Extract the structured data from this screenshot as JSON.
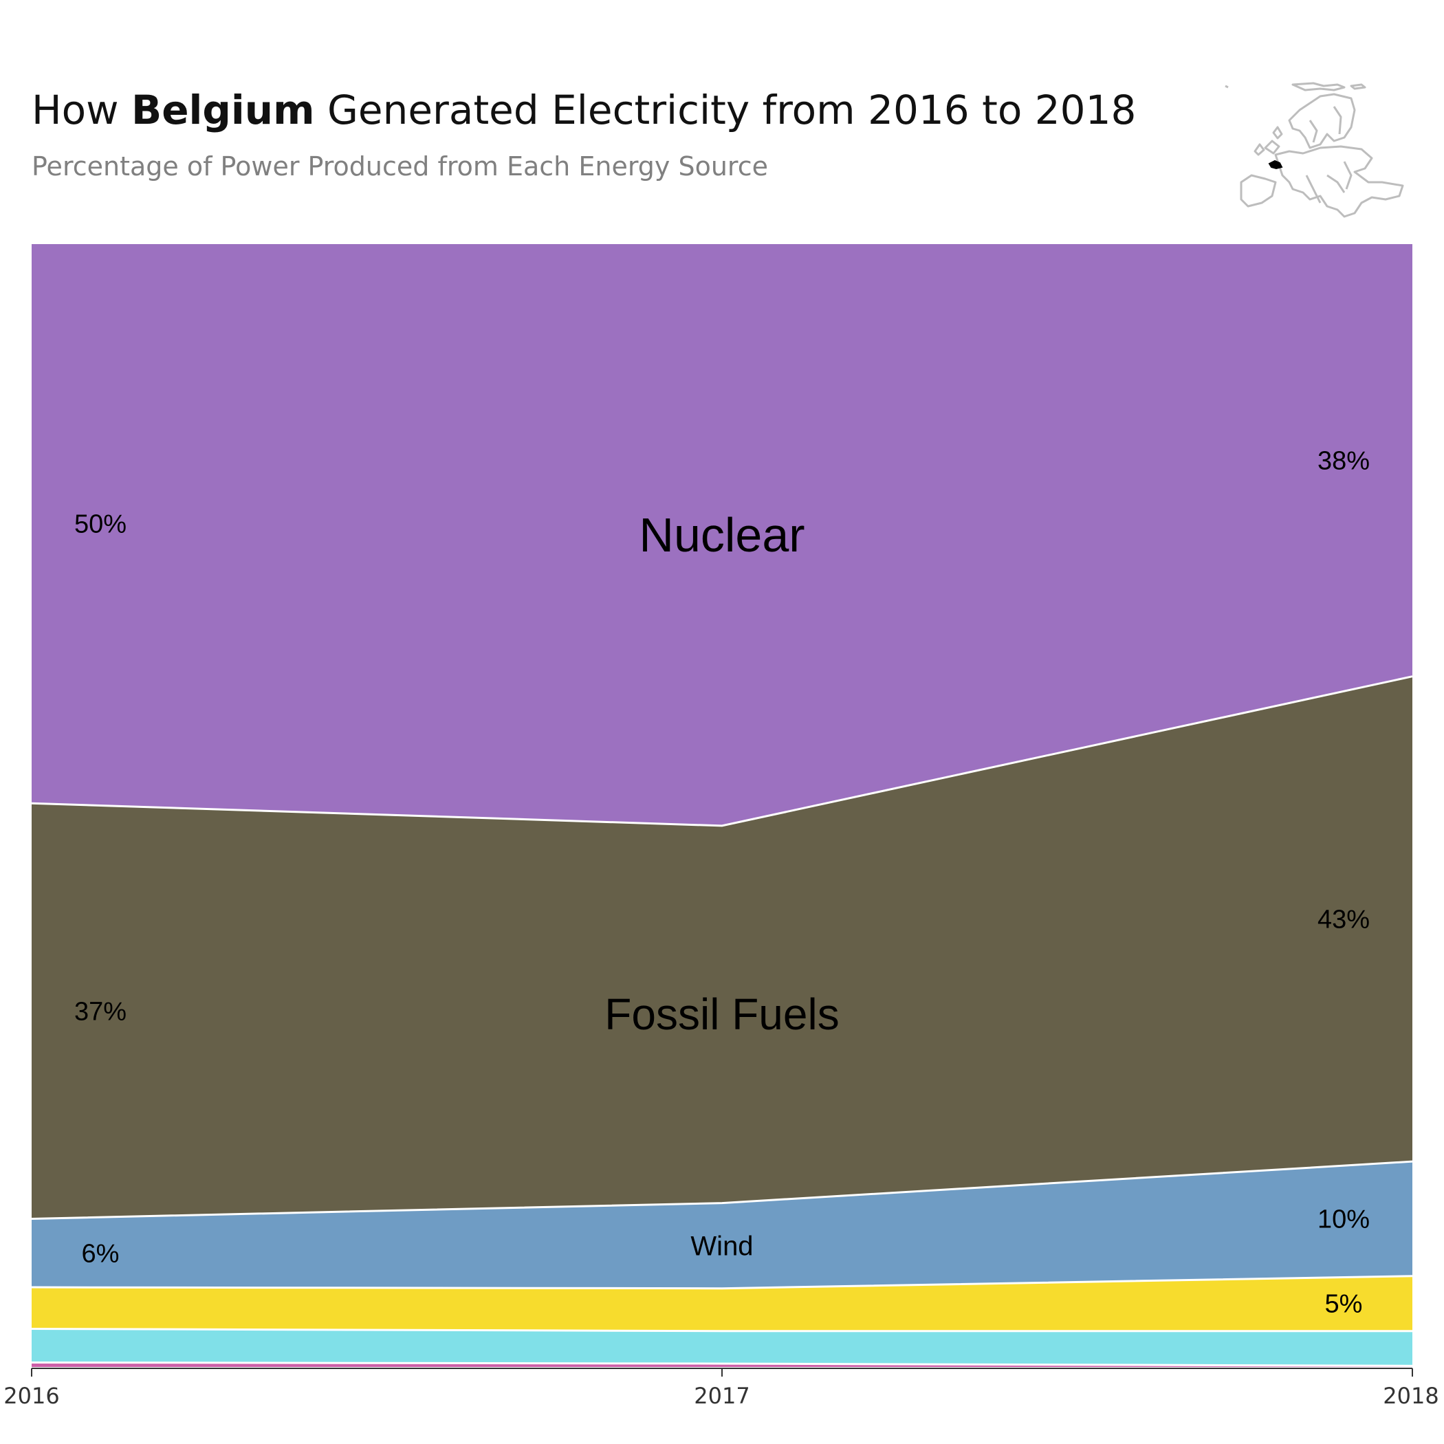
{
  "header": {
    "title_prefix": "How ",
    "title_country": "Belgium",
    "title_suffix": " Generated Electricity from 2016 to 2018",
    "subtitle": "Percentage of Power Produced from Each Energy Source"
  },
  "locator_map": {
    "icon": "europe-map-icon",
    "highlight": "Belgium",
    "highlight_color": "#000000",
    "outline_color": "#bdbdbd"
  },
  "chart_data": {
    "type": "area",
    "stacked": true,
    "normalized": true,
    "x": [
      "2016",
      "2017",
      "2018"
    ],
    "x_ticks": [
      "2016",
      "2017",
      "2018"
    ],
    "ylim": [
      0,
      100
    ],
    "grid": false,
    "legend": "none",
    "series": [
      {
        "name": "",
        "color": "#cc5fa8",
        "values": [
          0.4,
          0.3,
          0.1
        ]
      },
      {
        "name": "",
        "color": "#80e0e8",
        "values": [
          3.0,
          2.9,
          3.1
        ]
      },
      {
        "name": "",
        "color": "#f7dc2d",
        "values": [
          3.7,
          3.8,
          4.9
        ]
      },
      {
        "name": "Wind",
        "color": "#6f9cc4",
        "values": [
          6.1,
          7.6,
          10.2
        ]
      },
      {
        "name": "Fossil Fuels",
        "color": "#666049",
        "values": [
          37.0,
          33.6,
          43.2
        ]
      },
      {
        "name": "Nuclear",
        "color": "#9c71c0",
        "values": [
          49.8,
          51.8,
          38.5
        ]
      }
    ],
    "labels": {
      "nuclear": {
        "name": "Nuclear",
        "start": "50%",
        "end": "38%"
      },
      "fossil": {
        "name": "Fossil Fuels",
        "start": "37%",
        "end": "43%"
      },
      "wind": {
        "name": "Wind",
        "start": "6%",
        "end": "10%"
      },
      "solar": {
        "end": "5%"
      }
    }
  }
}
